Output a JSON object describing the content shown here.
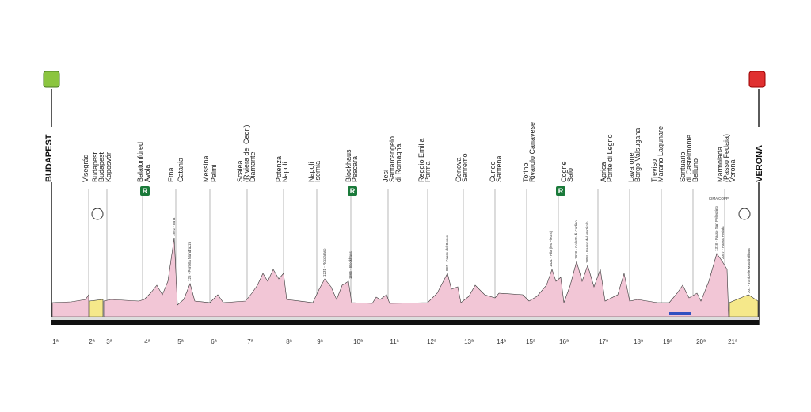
{
  "start": "BUDAPEST",
  "finish": "VERONA",
  "cities": [
    "Visegrád",
    "Budapest",
    "Budapest",
    "Kaposvár",
    "Balatonfüred",
    "Avola",
    "Etna",
    "Catania",
    "Messina",
    "Palmi",
    "Scalea",
    "(Riviera dei Cedri)",
    "Diamante",
    "Potenza",
    "Napoli",
    "Napoli",
    "Isernia",
    "Blockhaus",
    "Pescara",
    "Jesi",
    "Santarcangelo",
    "di Romagna",
    "Reggio Emilia",
    "Parma",
    "Genova",
    "Sanremo",
    "Cuneo",
    "Santena",
    "Torino",
    "Rivarolo Canavese",
    "Cogne",
    "Salò",
    "Aprica",
    "Ponte di Legno",
    "Lavarone",
    "Borgo Valsugana",
    "Treviso",
    "Marano Lagunare",
    "Santuario",
    "di Castelmonte",
    "Belluno",
    "Marmolada",
    "(Passo Fedaia)",
    "Verona"
  ],
  "stages": [
    "1ª",
    "2ª",
    "3ª",
    "4ª",
    "5ª",
    "6ª",
    "7ª",
    "8ª",
    "9ª",
    "10ª",
    "11ª",
    "12ª",
    "13ª",
    "14ª",
    "15ª",
    "16ª",
    "17ª",
    "18ª",
    "19ª",
    "20ª",
    "21ª"
  ],
  "rest_marker": "R",
  "climbs": [
    "1892 - Etna",
    "125 - Portella Mandrazzi",
    "1231 - Roccaraso",
    "1665 - Blockhaus",
    "807 - Passo del Bocco",
    "1421 - Pila (les Fleurs)",
    "1938 - Goletto di Cadino",
    "1854 - Passo del Mortirolo",
    "1318 - Passo San Pellegrino",
    "2057 - Passo Fedaia",
    "301 - Torricelle Massimiliana"
  ],
  "summit_label": "CIMA COPPI"
}
